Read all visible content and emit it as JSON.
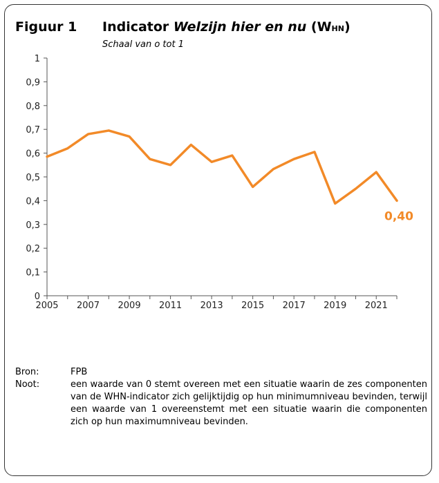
{
  "figure": {
    "label": "Figuur 1",
    "title_prefix": "Indicator ",
    "title_italic": "Welzijn hier en nu",
    "title_suffix_open": " (W",
    "title_subscript": "HN",
    "title_suffix_close": ")",
    "subtitle": "Schaal van o tot 1"
  },
  "chart_data": {
    "type": "line",
    "title": "Indicator Welzijn hier en nu (WHN)",
    "subtitle": "Schaal van o tot 1",
    "xlabel": "",
    "ylabel": "",
    "x": [
      2005,
      2006,
      2007,
      2008,
      2009,
      2010,
      2011,
      2012,
      2013,
      2014,
      2015,
      2016,
      2017,
      2018,
      2019,
      2020,
      2021,
      2022
    ],
    "series": [
      {
        "name": "",
        "values": [
          0.585,
          0.62,
          0.68,
          0.695,
          0.67,
          0.575,
          0.55,
          0.635,
          0.563,
          0.59,
          0.458,
          0.533,
          0.575,
          0.605,
          0.388,
          0.45,
          0.52,
          0.4
        ],
        "color": "#f28a28"
      }
    ],
    "ylim": [
      0,
      1
    ],
    "xlim": [
      2005,
      2022
    ],
    "y_ticks": [
      0,
      0.1,
      0.2,
      0.3,
      0.4,
      0.5,
      0.6,
      0.7,
      0.8,
      0.9,
      1
    ],
    "y_tick_labels": [
      "0",
      "0,1",
      "0,2",
      "0,3",
      "0,4",
      "0,5",
      "0,6",
      "0,7",
      "0,8",
      "0,9",
      "1"
    ],
    "x_tick_labels": [
      "2005",
      "2007",
      "2009",
      "2011",
      "2013",
      "2015",
      "2017",
      "2019",
      "2021"
    ],
    "end_label": "0,40",
    "grid": false,
    "legend": "none"
  },
  "notes": {
    "source_key": "Bron:",
    "source_val": "FPB",
    "note_key": "Noot:",
    "note_val": "een waarde van 0 stemt overeen met een situatie waarin de zes componenten van de WHN-indicator zich gelijktijdig op hun minimumniveau bevinden, terwijl een waarde van 1 overeenstemt met een situatie waarin die componenten zich op hun maximumniveau bevinden."
  }
}
